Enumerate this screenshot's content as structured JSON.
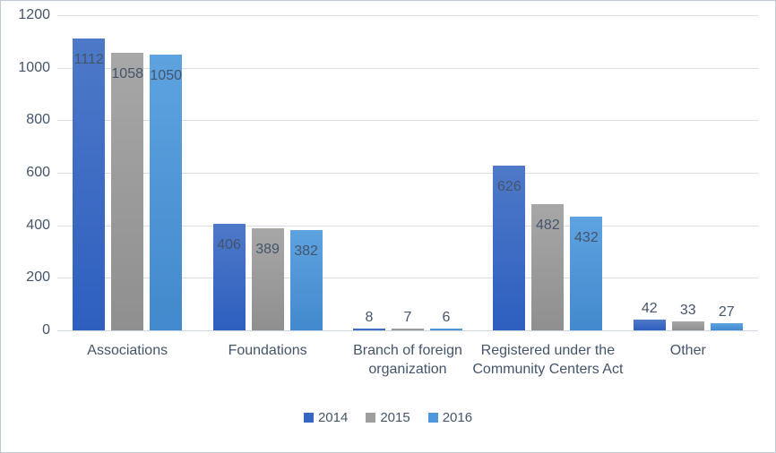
{
  "chart_data": {
    "type": "bar",
    "title": "",
    "categories": [
      "Associations",
      "Foundations",
      "Branch of foreign organization",
      "Registered under the Community Centers Act",
      "Other"
    ],
    "series": [
      {
        "name": "2014",
        "values": [
          1112,
          406,
          8,
          626,
          42
        ],
        "color_top": "#4e79c8",
        "color_bottom": "#2e5fc0",
        "legend_color": "#3666c3"
      },
      {
        "name": "2015",
        "values": [
          1058,
          389,
          7,
          482,
          33
        ],
        "color_top": "#a7a7a7",
        "color_bottom": "#8f8f8f",
        "legend_color": "#9e9e9e"
      },
      {
        "name": "2016",
        "values": [
          1050,
          382,
          6,
          432,
          27
        ],
        "color_top": "#5ea3e0",
        "color_bottom": "#4289cd",
        "legend_color": "#4f97db"
      }
    ],
    "ylim": [
      0,
      1200
    ],
    "yticks": [
      0,
      200,
      400,
      600,
      800,
      1000,
      1200
    ],
    "grid": true,
    "data_labels": true,
    "legend_position": "bottom"
  },
  "colors": {
    "text": "#44546a",
    "gridline": "#d8dde6",
    "axis_line": "#cfd5df",
    "background": "#ffffff",
    "frame_border": "#c2c8d2"
  }
}
